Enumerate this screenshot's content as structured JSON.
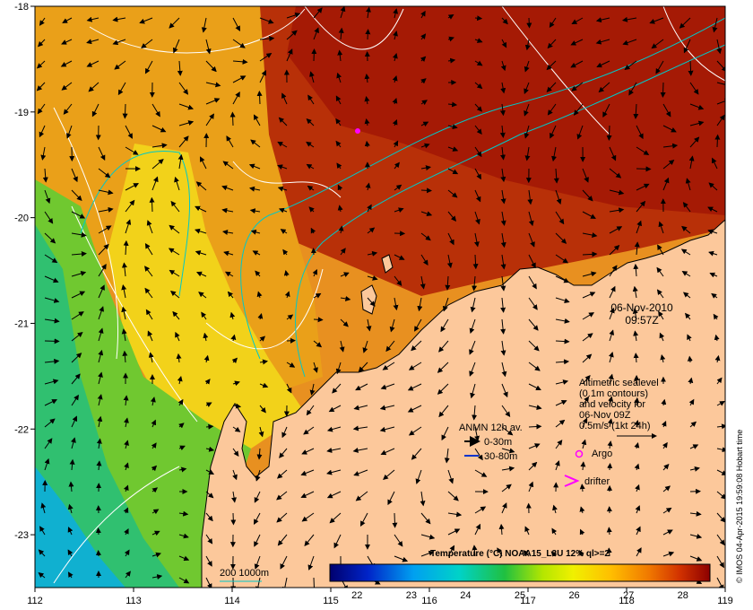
{
  "map": {
    "date_line1": "06-Nov-2010",
    "date_line2": "09:57Z",
    "lon_ticks": [
      "112",
      "113",
      "114",
      "115",
      "116",
      "117",
      "118",
      "119"
    ],
    "lat_ticks": [
      "-18",
      "-19",
      "-20",
      "-21",
      "-22",
      "-23"
    ],
    "lon_range": [
      112,
      119
    ],
    "lat_range": [
      -23.5,
      -18
    ],
    "altimetry_lines": [
      "Altimetric sealevel",
      "(0.1m contours)",
      "and velocity for",
      "06-Nov 09Z",
      "0.5m/s (1kt 24h)"
    ],
    "anmn_title": "ANMN 12h av.",
    "anmn_shallow": "0-30m",
    "anmn_deep": "30-80m",
    "argo_label": "Argo",
    "drifter_label": "drifter",
    "isobath_label": "200  1000m",
    "credit": "© IMOS 04-Apr-2015 19:59:08 Hobart time",
    "colors": {
      "land": "#fcc89b",
      "isobath": "#00c8c8",
      "argo": "#ff00ff",
      "anmn_shallow": "#000000",
      "anmn_deep": "#0033cc"
    }
  },
  "colorbar": {
    "title": "Temperature (°C) NOAA15_L3U 12% ql>=2",
    "range": [
      21.5,
      28.5
    ],
    "ticks": [
      "22",
      "23",
      "24",
      "25",
      "26",
      "27",
      "28"
    ]
  }
}
